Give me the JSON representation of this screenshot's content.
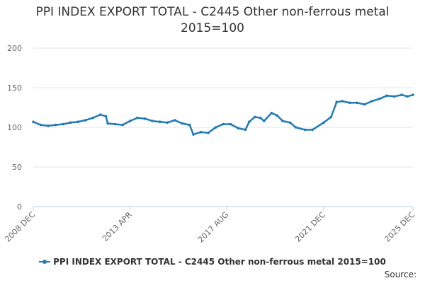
{
  "chart_data": {
    "type": "line",
    "title": [
      "PPI INDEX EXPORT TOTAL - C2445 Other non-ferrous metal",
      "2015=100"
    ],
    "xlabel": "",
    "ylabel": "",
    "ylim": [
      0,
      200
    ],
    "yticks": [
      0,
      50,
      100,
      150,
      200
    ],
    "xlim": [
      "2008-12",
      "2025-12"
    ],
    "xticks": [
      {
        "date": "2008-12",
        "label": "2008 DEC"
      },
      {
        "date": "2013-04",
        "label": "2013 APR"
      },
      {
        "date": "2017-08",
        "label": "2017 AUG"
      },
      {
        "date": "2021-12",
        "label": "2021 DEC"
      },
      {
        "date": "2025-12",
        "label": "2025 DEC"
      }
    ],
    "grid": "horizontal",
    "legend_position": "bottom",
    "color": "#1f7bb6",
    "series": [
      {
        "name": "PPI INDEX EXPORT TOTAL - C2445 Other non-ferrous metal 2015=100",
        "points": [
          [
            "2008-12",
            107
          ],
          [
            "2009-04",
            103
          ],
          [
            "2009-08",
            102
          ],
          [
            "2009-12",
            103
          ],
          [
            "2010-04",
            104
          ],
          [
            "2010-08",
            106
          ],
          [
            "2010-12",
            107
          ],
          [
            "2011-04",
            109
          ],
          [
            "2011-08",
            112
          ],
          [
            "2011-12",
            116
          ],
          [
            "2012-03",
            114
          ],
          [
            "2012-04",
            105
          ],
          [
            "2012-08",
            104
          ],
          [
            "2012-12",
            103
          ],
          [
            "2013-04",
            108
          ],
          [
            "2013-08",
            112
          ],
          [
            "2013-12",
            111
          ],
          [
            "2014-04",
            108
          ],
          [
            "2014-08",
            107
          ],
          [
            "2014-12",
            106
          ],
          [
            "2015-04",
            109
          ],
          [
            "2015-08",
            105
          ],
          [
            "2015-12",
            103
          ],
          [
            "2016-02",
            91
          ],
          [
            "2016-06",
            94
          ],
          [
            "2016-10",
            93
          ],
          [
            "2017-02",
            100
          ],
          [
            "2017-06",
            104
          ],
          [
            "2017-10",
            104
          ],
          [
            "2018-02",
            99
          ],
          [
            "2018-06",
            97
          ],
          [
            "2018-08",
            107
          ],
          [
            "2018-11",
            113
          ],
          [
            "2019-02",
            112
          ],
          [
            "2019-04",
            108
          ],
          [
            "2019-08",
            118
          ],
          [
            "2019-11",
            115
          ],
          [
            "2020-02",
            108
          ],
          [
            "2020-06",
            106
          ],
          [
            "2020-09",
            100
          ],
          [
            "2021-02",
            97
          ],
          [
            "2021-06",
            97
          ],
          [
            "2021-12",
            106
          ],
          [
            "2022-04",
            113
          ],
          [
            "2022-07",
            132
          ],
          [
            "2022-10",
            133
          ],
          [
            "2023-02",
            131
          ],
          [
            "2023-06",
            131
          ],
          [
            "2023-10",
            129
          ],
          [
            "2024-02",
            133
          ],
          [
            "2024-06",
            136
          ],
          [
            "2024-10",
            140
          ],
          [
            "2025-02",
            139
          ],
          [
            "2025-06",
            141
          ],
          [
            "2025-09",
            139
          ],
          [
            "2025-12",
            141
          ]
        ]
      }
    ]
  },
  "source_label": "Source:"
}
